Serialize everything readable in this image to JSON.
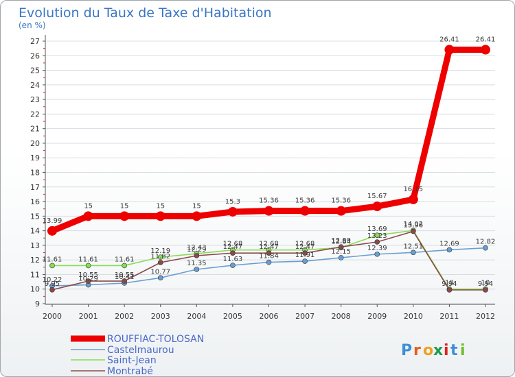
{
  "chart_data": {
    "type": "line",
    "title": "Evolution du Taux de Taxe d'Habitation",
    "ylabel": "(en %)",
    "ylim": [
      9,
      27
    ],
    "yticks": [
      9,
      10,
      11,
      12,
      13,
      14,
      15,
      16,
      17,
      18,
      19,
      20,
      21,
      22,
      23,
      24,
      25,
      26,
      27
    ],
    "categories": [
      "2000",
      "2001",
      "2002",
      "2003",
      "2004",
      "2005",
      "2006",
      "2007",
      "2008",
      "2009",
      "2010",
      "2011",
      "2012"
    ],
    "series": [
      {
        "name": "ROUFFIAC-TOLOSAN",
        "color": "#ee0000",
        "values": [
          13.99,
          15,
          15,
          15,
          15,
          15.3,
          15.36,
          15.36,
          15.36,
          15.67,
          16.15,
          26.41,
          26.41
        ],
        "labels": [
          "13.99",
          "15",
          "15",
          "15",
          "15",
          "15.3",
          "15.36",
          "15.36",
          "15.36",
          "15.67",
          "16.15",
          "26.41",
          "26.41"
        ]
      },
      {
        "name": "Castelmaurou",
        "color": "#6a9ed1",
        "values": [
          10.22,
          10.29,
          10.41,
          10.77,
          11.35,
          11.63,
          11.84,
          11.91,
          12.15,
          12.39,
          12.51,
          12.69,
          12.82
        ],
        "labels": [
          "10.22",
          "10.29",
          "10.41",
          "10.77",
          "11.35",
          "11.63",
          "11.84",
          "11.91",
          "12.15",
          "12.39",
          "12.51",
          "12.69",
          "12.82"
        ]
      },
      {
        "name": "Saint-Jean",
        "color": "#88dd55",
        "values": [
          11.61,
          11.61,
          11.61,
          12.19,
          12.43,
          12.68,
          12.68,
          12.68,
          12.84,
          13.69,
          14.02,
          10,
          10
        ],
        "labels": [
          "11.61",
          "11.61",
          "11.61",
          "12.19",
          "12.43",
          "12.68",
          "12.68",
          "12.68",
          "12.84",
          "13.69",
          "14.02",
          "10",
          "10"
        ]
      },
      {
        "name": "Montrabé",
        "color": "#8b4a4a",
        "values": [
          9.95,
          10.55,
          10.55,
          11.82,
          12.29,
          12.47,
          12.47,
          12.47,
          12.89,
          13.23,
          13.96,
          9.94,
          9.94
        ],
        "labels": [
          "9.95",
          "10.55",
          "10.55",
          "11.82",
          "12.29",
          "12.47",
          "12.47",
          "12.47",
          "12.89",
          "13.23",
          "13.96",
          "9.94",
          "9.94"
        ]
      }
    ]
  },
  "brand": {
    "text": "Proxiti"
  }
}
